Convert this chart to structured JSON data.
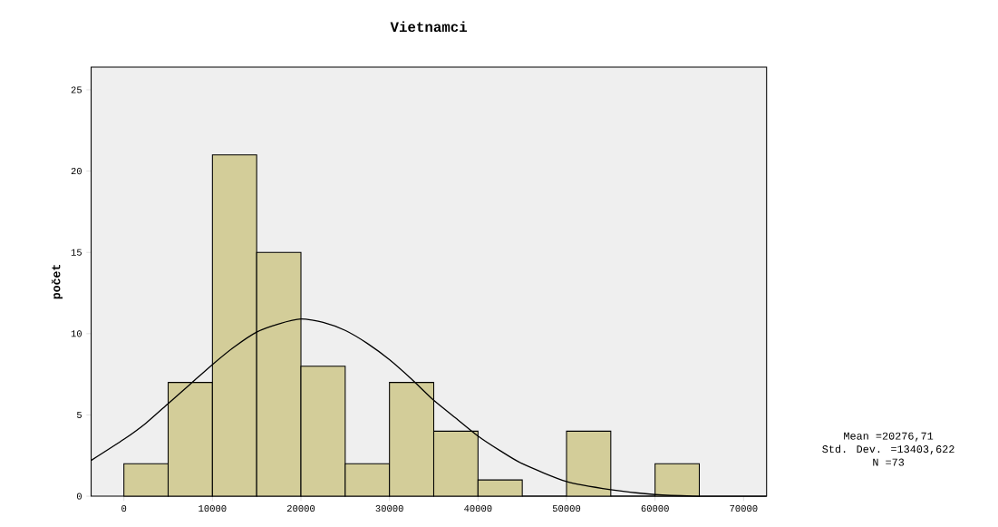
{
  "chart_data": {
    "type": "histogram",
    "title": "Vietnamci",
    "ylabel": "počet",
    "bins": [
      0,
      5000,
      10000,
      15000,
      20000,
      25000,
      30000,
      35000,
      40000,
      45000,
      50000,
      55000,
      60000,
      65000
    ],
    "values": [
      2,
      7,
      21,
      15,
      8,
      2,
      7,
      4,
      1,
      0,
      4,
      0,
      2
    ],
    "color": "#d3cd99",
    "series": [
      {
        "type": "line",
        "color": "#000000",
        "x": [
          -3700,
          0,
          2500,
          5000,
          7500,
          10000,
          12500,
          15000,
          17500,
          20000,
          22500,
          25000,
          27500,
          30000,
          32500,
          35000,
          37500,
          40000,
          42500,
          45000,
          50000,
          55000,
          60000,
          65000,
          70000,
          72600
        ],
        "values": [
          2.2,
          3.5,
          4.5,
          5.7,
          6.9,
          8.1,
          9.2,
          10.1,
          10.6,
          10.9,
          10.7,
          10.2,
          9.4,
          8.4,
          7.2,
          5.9,
          4.8,
          3.7,
          2.8,
          2.0,
          0.9,
          0.4,
          0.1,
          0.0,
          0.0,
          0.0
        ]
      }
    ],
    "xlim": [
      -3700,
      72600
    ],
    "ylim": [
      0,
      26.4
    ],
    "xticks": [
      0,
      10000,
      20000,
      30000,
      40000,
      50000,
      60000,
      70000
    ],
    "yticks": [
      0,
      5,
      10,
      15,
      20,
      25
    ],
    "annotations": [
      "Mean =20276,71",
      "Std. Dev. =13403,622",
      "N =73"
    ]
  }
}
